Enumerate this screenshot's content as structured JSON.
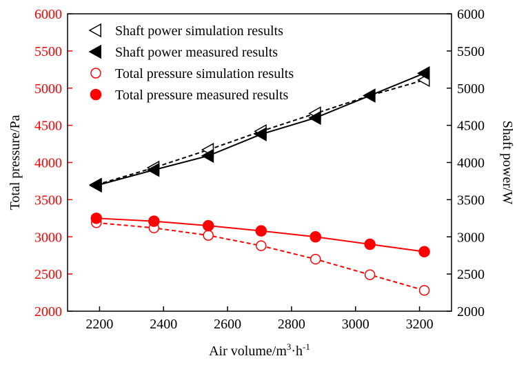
{
  "chart_data": {
    "type": "line",
    "xlabel_main": "Air volume/m",
    "xlabel_sup1": "3",
    "xlabel_mid": "·h",
    "xlabel_sup2": "-1",
    "ylabel_left": "Total pressure/Pa",
    "ylabel_right": "Shaft power/W",
    "xlim": [
      2100,
      3300
    ],
    "ylim_left": [
      2000,
      6000
    ],
    "ylim_right": [
      2000,
      6000
    ],
    "x_ticks": [
      2200,
      2400,
      2600,
      2800,
      3000,
      3200
    ],
    "y_ticks_left": [
      2000,
      2500,
      3000,
      3500,
      4000,
      4500,
      5000,
      5500,
      6000
    ],
    "y_ticks_right": [
      2000,
      2500,
      3000,
      3500,
      4000,
      4500,
      5000,
      5500,
      6000
    ],
    "x": [
      2190,
      2370,
      2540,
      2705,
      2875,
      3045,
      3215
    ],
    "series": [
      {
        "name": "Shaft power simulation results",
        "axis": "right",
        "marker": "triangle-left-open",
        "line": "dashed",
        "color": "#000000",
        "values": [
          3700,
          3930,
          4170,
          4420,
          4660,
          4900,
          5110
        ]
      },
      {
        "name": "Shaft power measured results",
        "axis": "right",
        "marker": "triangle-left-filled",
        "line": "solid",
        "color": "#000000",
        "values": [
          3690,
          3900,
          4090,
          4380,
          4600,
          4900,
          5200
        ]
      },
      {
        "name": "Total pressure simulation results",
        "axis": "left",
        "marker": "circle-open",
        "line": "dashed",
        "color": "#ff0000",
        "values": [
          3190,
          3120,
          3020,
          2880,
          2700,
          2490,
          2280
        ]
      },
      {
        "name": "Total pressure measured results",
        "axis": "left",
        "marker": "circle-filled",
        "line": "solid",
        "color": "#ff0000",
        "values": [
          3250,
          3210,
          3150,
          3080,
          3000,
          2900,
          2800
        ]
      }
    ],
    "legend_position": "top-left"
  },
  "colors": {
    "left_axis": "#ff0000",
    "right_axis": "#000000",
    "frame": "#000000"
  }
}
